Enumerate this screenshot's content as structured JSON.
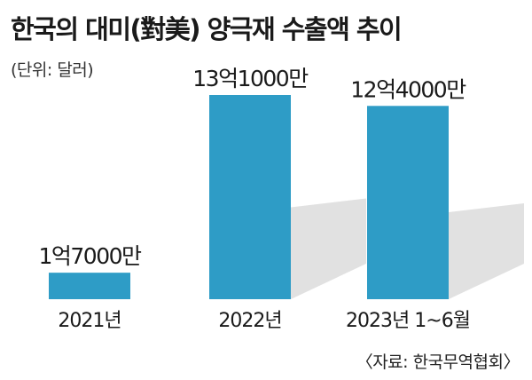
{
  "chart_data": {
    "type": "bar",
    "title": "한국의 대미(對美) 양극재 수출액 추이",
    "unit_note": "(단위: 달러)",
    "categories": [
      "2021년",
      "2022년",
      "2023년 1~6월"
    ],
    "values": [
      170000000,
      1310000000,
      1240000000
    ],
    "value_labels": [
      "1억7000만",
      "13억1000만",
      "12억4000만"
    ],
    "xlabel": "",
    "ylabel": "",
    "ylim": [
      0,
      1310000000
    ],
    "grid": false,
    "legend": "none",
    "source": "〈자료: 한국무역협회〉",
    "colors": {
      "bar": "#2e9cc6",
      "shadow": "#d9d9d9",
      "background": "#ffffff",
      "text": "#1a1a1a"
    }
  }
}
